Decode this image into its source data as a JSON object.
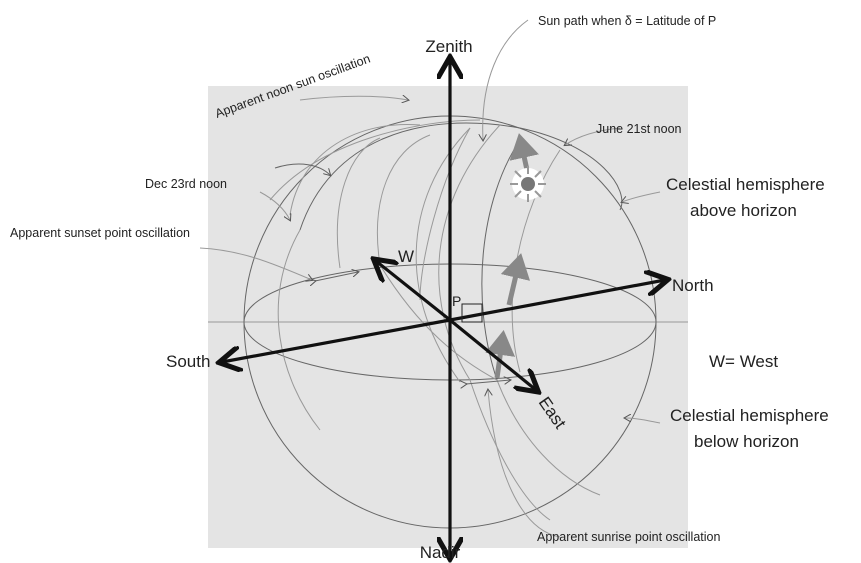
{
  "axes": {
    "zenith": "Zenith",
    "nadir": "Nadir",
    "north": "North",
    "south": "South",
    "east": "East",
    "west": "W",
    "point": "P"
  },
  "legend": {
    "west_note": "W= West"
  },
  "annotations": {
    "sun_path": "Sun path when  δ = Latitude of P",
    "noon_oscillation": "Apparent noon sun oscillation",
    "june_noon": "June 21st noon",
    "dec_noon": "Dec 23rd noon",
    "sunset_oscillation": "Apparent sunset point oscillation",
    "sunrise_oscillation": "Apparent sunrise point oscillation",
    "above_horizon": [
      "Celestial hemisphere",
      "above horizon"
    ],
    "below_horizon": [
      "Celestial hemisphere",
      "below horizon"
    ]
  }
}
